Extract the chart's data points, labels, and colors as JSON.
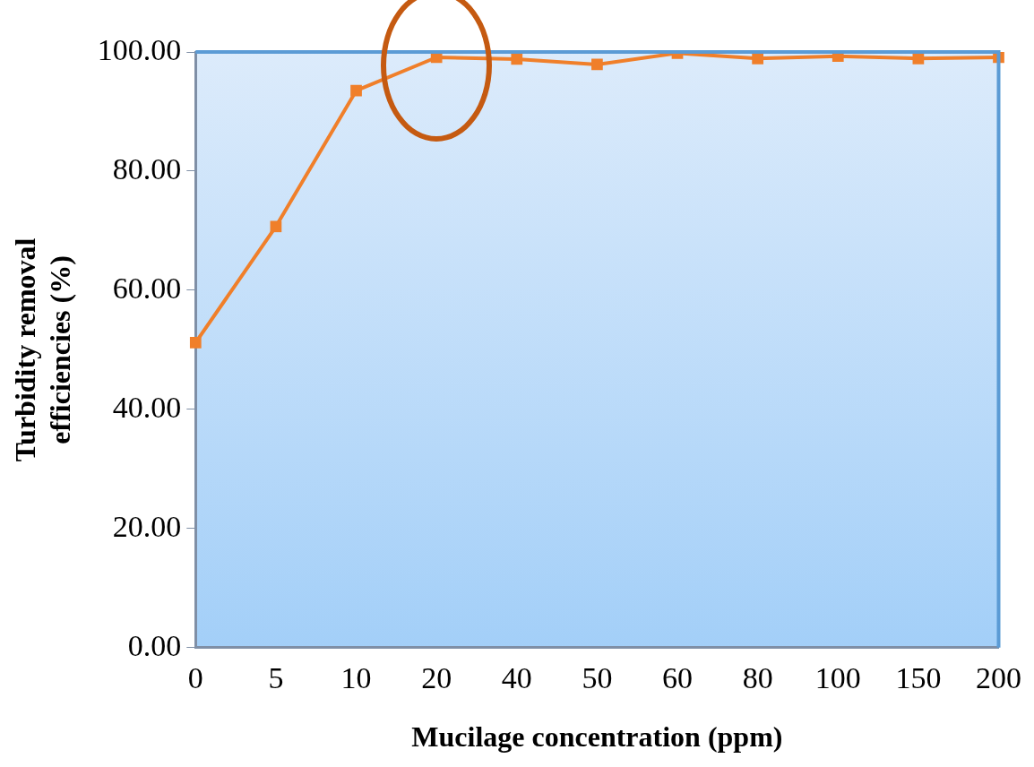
{
  "chart_data": {
    "type": "line",
    "xlabel": "Mucilage concentration (ppm)",
    "ylabel": "Turbidity removal efficiencies (%)",
    "categories": [
      "0",
      "5",
      "10",
      "20",
      "40",
      "50",
      "60",
      "80",
      "100",
      "150",
      "200"
    ],
    "series": [
      {
        "color": "#f07f2a",
        "values": [
          51.2,
          70.7,
          93.5,
          99.1,
          98.8,
          97.9,
          99.8,
          98.9,
          99.3,
          98.9,
          99.1
        ]
      }
    ],
    "ylim": [
      0,
      100
    ],
    "yticks": [
      {
        "value": 0,
        "label": "0.00"
      },
      {
        "value": 20,
        "label": "20.00"
      },
      {
        "value": 40,
        "label": "40.00"
      },
      {
        "value": 60,
        "label": "60.00"
      },
      {
        "value": 80,
        "label": "80.00"
      },
      {
        "value": 100,
        "label": "100.00"
      }
    ],
    "grid": false,
    "marker": "square",
    "line_style": "solid",
    "legend": false
  }
}
